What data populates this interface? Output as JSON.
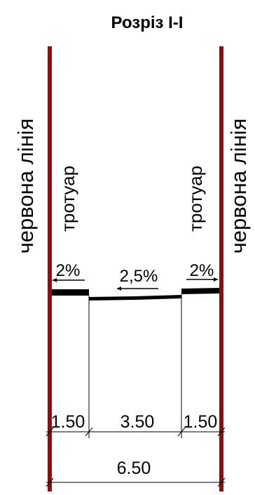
{
  "title": "Розріз І-І",
  "red_line": {
    "label_left": "червона лінія",
    "label_right": "червона лінія",
    "color": "#8b0f0f"
  },
  "sidewalks": {
    "left_label": "тротуар",
    "right_label": "тротуар"
  },
  "slopes": {
    "left_sidewalk": "2%",
    "carriageway": "2,5%",
    "right_sidewalk": "2%"
  },
  "dimensions": {
    "left_sidewalk": "1.50",
    "carriageway": "3.50",
    "right_sidewalk": "1.50",
    "total": "6.50"
  }
}
